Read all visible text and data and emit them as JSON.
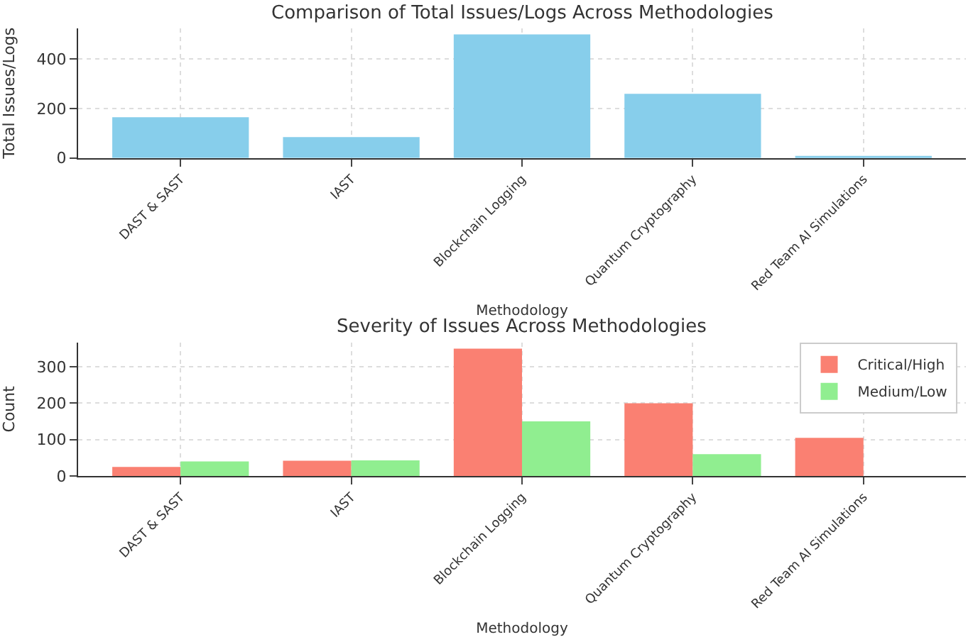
{
  "chart_data": [
    {
      "type": "bar",
      "title": "Comparison of Total Issues/Logs Across Methodologies",
      "xlabel": "Methodology",
      "ylabel": "Total Issues/Logs",
      "categories": [
        "DAST & SAST",
        "IAST",
        "Blockchain Logging",
        "Quantum Cryptography",
        "Red Team AI Simulations"
      ],
      "values": [
        165,
        85,
        500,
        260,
        3
      ],
      "color": "#87ceeb",
      "ylim": [
        0,
        525
      ],
      "yticks": [
        0,
        200,
        400
      ],
      "grid": true,
      "legend": false
    },
    {
      "type": "bar",
      "title": "Severity of Issues Across Methodologies",
      "xlabel": "Methodology",
      "ylabel": "Count",
      "categories": [
        "DAST & SAST",
        "IAST",
        "Blockchain Logging",
        "Quantum Cryptography",
        "Red Team AI Simulations"
      ],
      "series": [
        {
          "name": "Critical/High",
          "color": "#fa8072",
          "values": [
            25,
            42,
            350,
            200,
            105
          ]
        },
        {
          "name": "Medium/Low",
          "color": "#90ee90",
          "values": [
            40,
            43,
            150,
            60,
            0
          ]
        }
      ],
      "ylim": [
        0,
        367.5
      ],
      "yticks": [
        0,
        100,
        200,
        300
      ],
      "grid": true,
      "legend": "top right"
    }
  ]
}
